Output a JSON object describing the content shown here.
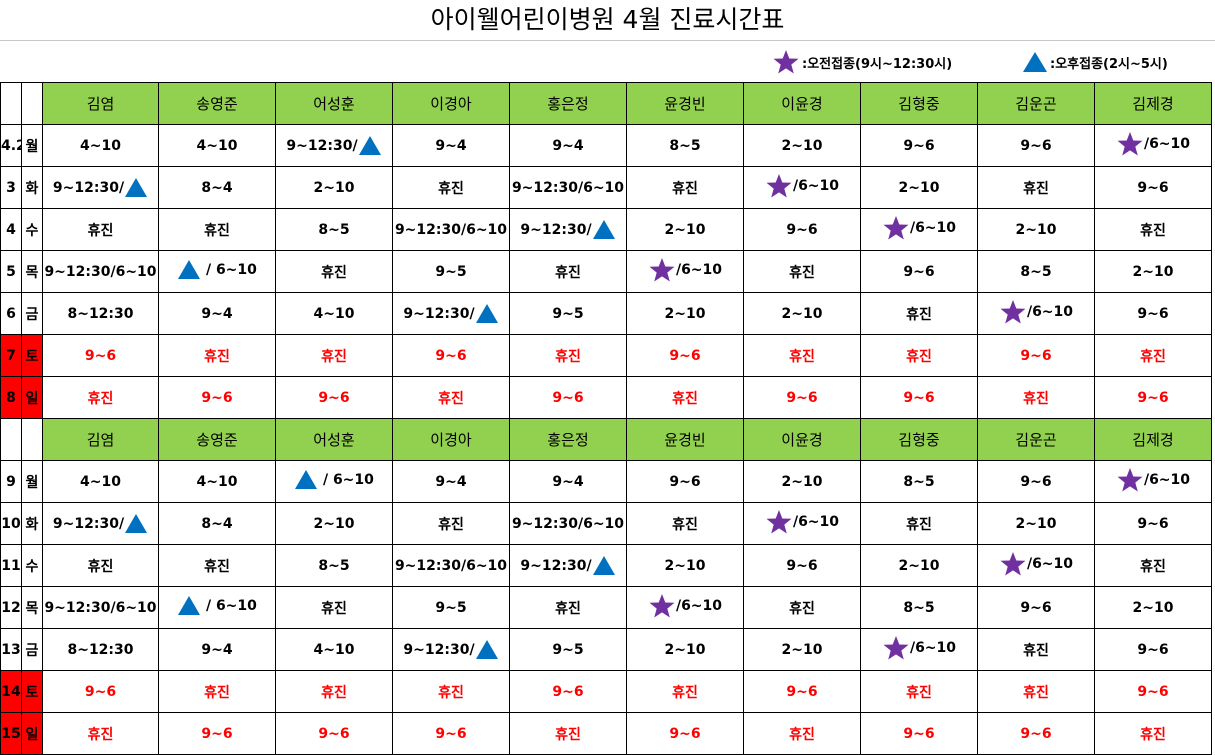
{
  "title": "아이웰어린이병원  4월 진료시간표",
  "legend": {
    "morning": ":오전접종(9시~12:30시)",
    "afternoon": ":오후접종(2시~5시)"
  },
  "colors": {
    "header": "#92d050",
    "weekend": "#ff0000",
    "star": "#7030a0",
    "triangle": "#0070c0"
  },
  "doctors": [
    "김염",
    "송영준",
    "어성훈",
    "이경아",
    "홍은정",
    "윤경빈",
    "이윤경",
    "김형중",
    "김운곤",
    "김제경"
  ],
  "week1": [
    {
      "date": "4.2",
      "dow": "월",
      "weekend": false,
      "cells": [
        {
          "t": "4~10"
        },
        {
          "t": "4~10"
        },
        {
          "t": "9~12:30/",
          "post": "tri"
        },
        {
          "t": "9~4"
        },
        {
          "t": "9~4"
        },
        {
          "t": "8~5"
        },
        {
          "t": "2~10"
        },
        {
          "t": "9~6"
        },
        {
          "t": "9~6"
        },
        {
          "pre": "star",
          "t": "/6~10"
        }
      ]
    },
    {
      "date": "3",
      "dow": "화",
      "weekend": false,
      "cells": [
        {
          "t": "9~12:30/",
          "post": "tri"
        },
        {
          "t": "8~4"
        },
        {
          "t": "2~10"
        },
        {
          "t": "휴진"
        },
        {
          "t": "9~12:30/6~10"
        },
        {
          "t": "휴진"
        },
        {
          "pre": "star",
          "t": "/6~10"
        },
        {
          "t": "2~10"
        },
        {
          "t": "휴진"
        },
        {
          "t": "9~6"
        }
      ]
    },
    {
      "date": "4",
      "dow": "수",
      "weekend": false,
      "cells": [
        {
          "t": "휴진"
        },
        {
          "t": "휴진"
        },
        {
          "t": "8~5"
        },
        {
          "t": "9~12:30/6~10"
        },
        {
          "t": "9~12:30/",
          "post": "tri"
        },
        {
          "t": "2~10"
        },
        {
          "t": "9~6"
        },
        {
          "pre": "star",
          "t": "/6~10"
        },
        {
          "t": "2~10"
        },
        {
          "t": "휴진"
        }
      ]
    },
    {
      "date": "5",
      "dow": "목",
      "weekend": false,
      "cells": [
        {
          "t": "9~12:30/6~10"
        },
        {
          "pre": "tri",
          "t": " / 6~10"
        },
        {
          "t": "휴진"
        },
        {
          "t": "9~5"
        },
        {
          "t": "휴진"
        },
        {
          "pre": "star",
          "t": "/6~10"
        },
        {
          "t": "휴진"
        },
        {
          "t": "9~6"
        },
        {
          "t": "8~5"
        },
        {
          "t": "2~10"
        }
      ]
    },
    {
      "date": "6",
      "dow": "금",
      "weekend": false,
      "cells": [
        {
          "t": "8~12:30"
        },
        {
          "t": "9~4"
        },
        {
          "t": "4~10"
        },
        {
          "t": "9~12:30/",
          "post": "tri"
        },
        {
          "t": "9~5"
        },
        {
          "t": "2~10"
        },
        {
          "t": "2~10"
        },
        {
          "t": "휴진"
        },
        {
          "pre": "star",
          "t": "/6~10"
        },
        {
          "t": "9~6"
        }
      ]
    },
    {
      "date": "7",
      "dow": "토",
      "weekend": true,
      "cells": [
        {
          "t": "9~6"
        },
        {
          "t": "휴진"
        },
        {
          "t": "휴진"
        },
        {
          "t": "9~6"
        },
        {
          "t": "휴진"
        },
        {
          "t": "9~6"
        },
        {
          "t": "휴진"
        },
        {
          "t": "휴진"
        },
        {
          "t": "9~6"
        },
        {
          "t": "휴진"
        }
      ]
    },
    {
      "date": "8",
      "dow": "일",
      "weekend": true,
      "cells": [
        {
          "t": "휴진"
        },
        {
          "t": "9~6"
        },
        {
          "t": "9~6"
        },
        {
          "t": "휴진"
        },
        {
          "t": "9~6"
        },
        {
          "t": "휴진"
        },
        {
          "t": "9~6"
        },
        {
          "t": "9~6"
        },
        {
          "t": "휴진"
        },
        {
          "t": "9~6"
        }
      ]
    }
  ],
  "week2": [
    {
      "date": "9",
      "dow": "월",
      "weekend": false,
      "cells": [
        {
          "t": "4~10"
        },
        {
          "t": "4~10"
        },
        {
          "pre": "tri",
          "t": " / 6~10"
        },
        {
          "t": "9~4"
        },
        {
          "t": "9~4"
        },
        {
          "t": "9~6"
        },
        {
          "t": "2~10"
        },
        {
          "t": "8~5"
        },
        {
          "t": "9~6"
        },
        {
          "pre": "star",
          "t": "/6~10"
        }
      ]
    },
    {
      "date": "10",
      "dow": "화",
      "weekend": false,
      "cells": [
        {
          "t": "9~12:30/",
          "post": "tri"
        },
        {
          "t": "8~4"
        },
        {
          "t": "2~10"
        },
        {
          "t": "휴진"
        },
        {
          "t": "9~12:30/6~10"
        },
        {
          "t": "휴진"
        },
        {
          "pre": "star",
          "t": "/6~10"
        },
        {
          "t": "휴진"
        },
        {
          "t": "2~10"
        },
        {
          "t": "9~6"
        }
      ]
    },
    {
      "date": "11",
      "dow": "수",
      "weekend": false,
      "cells": [
        {
          "t": "휴진"
        },
        {
          "t": "휴진"
        },
        {
          "t": "8~5"
        },
        {
          "t": "9~12:30/6~10"
        },
        {
          "t": "9~12:30/",
          "post": "tri"
        },
        {
          "t": "2~10"
        },
        {
          "t": "9~6"
        },
        {
          "t": "2~10"
        },
        {
          "pre": "star",
          "t": "/6~10"
        },
        {
          "t": "휴진"
        }
      ]
    },
    {
      "date": "12",
      "dow": "목",
      "weekend": false,
      "cells": [
        {
          "t": "9~12:30/6~10"
        },
        {
          "pre": "tri",
          "t": " / 6~10"
        },
        {
          "t": "휴진"
        },
        {
          "t": "9~5"
        },
        {
          "t": "휴진"
        },
        {
          "pre": "star",
          "t": "/6~10"
        },
        {
          "t": "휴진"
        },
        {
          "t": "8~5"
        },
        {
          "t": "9~6"
        },
        {
          "t": "2~10"
        }
      ]
    },
    {
      "date": "13",
      "dow": "금",
      "weekend": false,
      "cells": [
        {
          "t": "8~12:30"
        },
        {
          "t": "9~4"
        },
        {
          "t": "4~10"
        },
        {
          "t": "9~12:30/",
          "post": "tri"
        },
        {
          "t": "9~5"
        },
        {
          "t": "2~10"
        },
        {
          "t": "2~10"
        },
        {
          "pre": "star",
          "t": "/6~10"
        },
        {
          "t": "휴진"
        },
        {
          "t": "9~6"
        }
      ]
    },
    {
      "date": "14",
      "dow": "토",
      "weekend": true,
      "cells": [
        {
          "t": "9~6"
        },
        {
          "t": "휴진"
        },
        {
          "t": "휴진"
        },
        {
          "t": "휴진"
        },
        {
          "t": "9~6"
        },
        {
          "t": "휴진"
        },
        {
          "t": "9~6"
        },
        {
          "t": "휴진"
        },
        {
          "t": "휴진"
        },
        {
          "t": "9~6"
        }
      ]
    },
    {
      "date": "15",
      "dow": "일",
      "weekend": true,
      "cells": [
        {
          "t": "휴진"
        },
        {
          "t": "9~6"
        },
        {
          "t": "9~6"
        },
        {
          "t": "9~6"
        },
        {
          "t": "휴진"
        },
        {
          "t": "9~6"
        },
        {
          "t": "휴진"
        },
        {
          "t": "9~6"
        },
        {
          "t": "9~6"
        },
        {
          "t": "휴진"
        }
      ]
    }
  ]
}
